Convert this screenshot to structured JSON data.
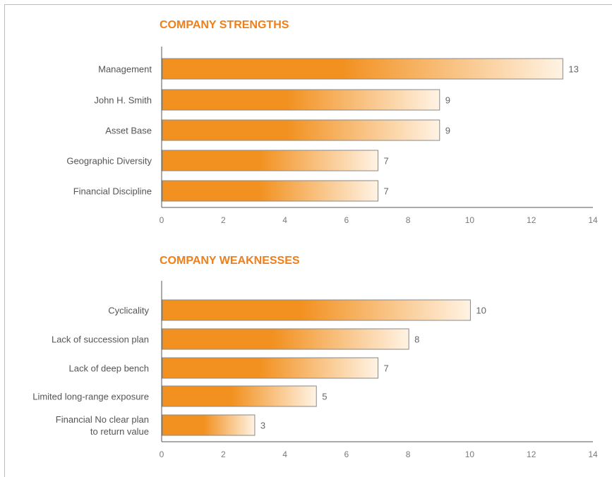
{
  "chart_data": [
    {
      "type": "bar",
      "orientation": "horizontal",
      "title": "COMPANY STRENGTHS",
      "categories": [
        "Management",
        "John H. Smith",
        "Asset Base",
        "Geographic Diversity",
        "Financial Discipline"
      ],
      "values": [
        13,
        9,
        9,
        7,
        7
      ],
      "xlim": [
        0,
        14
      ],
      "xticks": [
        0,
        2,
        4,
        6,
        8,
        10,
        12,
        14
      ],
      "grid": false,
      "data_labels": true
    },
    {
      "type": "bar",
      "orientation": "horizontal",
      "title": "COMPANY WEAKNESSES",
      "categories": [
        "Cyclicality",
        "Lack of succession plan",
        "Lack of deep bench",
        "Limited long-range exposure",
        "Financial No clear plan to return value"
      ],
      "category_lines": [
        [
          "Cyclicality"
        ],
        [
          "Lack of succession plan"
        ],
        [
          "Lack of deep bench"
        ],
        [
          "Limited long-range exposure"
        ],
        [
          "Financial No clear plan",
          "to return value"
        ]
      ],
      "values": [
        10,
        8,
        7,
        5,
        3
      ],
      "xlim": [
        0,
        14
      ],
      "xticks": [
        0,
        2,
        4,
        6,
        8,
        10,
        12,
        14
      ],
      "grid": false,
      "data_labels": true
    }
  ],
  "colors": {
    "title": "#ef7f1a",
    "bar_start": "#f29120",
    "bar_end": "#fff3e4",
    "bar_border": "#8a8a8a",
    "axis": "#555555"
  }
}
